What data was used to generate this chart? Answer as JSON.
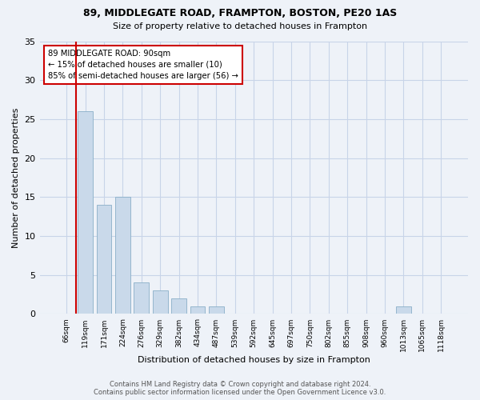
{
  "title1": "89, MIDDLEGATE ROAD, FRAMPTON, BOSTON, PE20 1AS",
  "title2": "Size of property relative to detached houses in Frampton",
  "xlabel": "Distribution of detached houses by size in Frampton",
  "ylabel": "Number of detached properties",
  "categories": [
    "66sqm",
    "119sqm",
    "171sqm",
    "224sqm",
    "276sqm",
    "329sqm",
    "382sqm",
    "434sqm",
    "487sqm",
    "539sqm",
    "592sqm",
    "645sqm",
    "697sqm",
    "750sqm",
    "802sqm",
    "855sqm",
    "908sqm",
    "960sqm",
    "1013sqm",
    "1065sqm",
    "1118sqm"
  ],
  "values": [
    0,
    26,
    14,
    15,
    4,
    3,
    2,
    1,
    1,
    0,
    0,
    0,
    0,
    0,
    0,
    0,
    0,
    0,
    1,
    0,
    0
  ],
  "bar_color": "#c9d9ea",
  "bar_edge_color": "#8aafc8",
  "vline_x": 0.5,
  "annotation_lines": [
    "89 MIDDLEGATE ROAD: 90sqm",
    "← 15% of detached houses are smaller (10)",
    "85% of semi-detached houses are larger (56) →"
  ],
  "annotation_box_color": "#ffffff",
  "annotation_box_edge_color": "#cc0000",
  "vline_color": "#cc0000",
  "ylim": [
    0,
    35
  ],
  "yticks": [
    0,
    5,
    10,
    15,
    20,
    25,
    30,
    35
  ],
  "grid_color": "#c8d4e8",
  "background_color": "#eef2f8",
  "footer_line1": "Contains HM Land Registry data © Crown copyright and database right 2024.",
  "footer_line2": "Contains public sector information licensed under the Open Government Licence v3.0."
}
